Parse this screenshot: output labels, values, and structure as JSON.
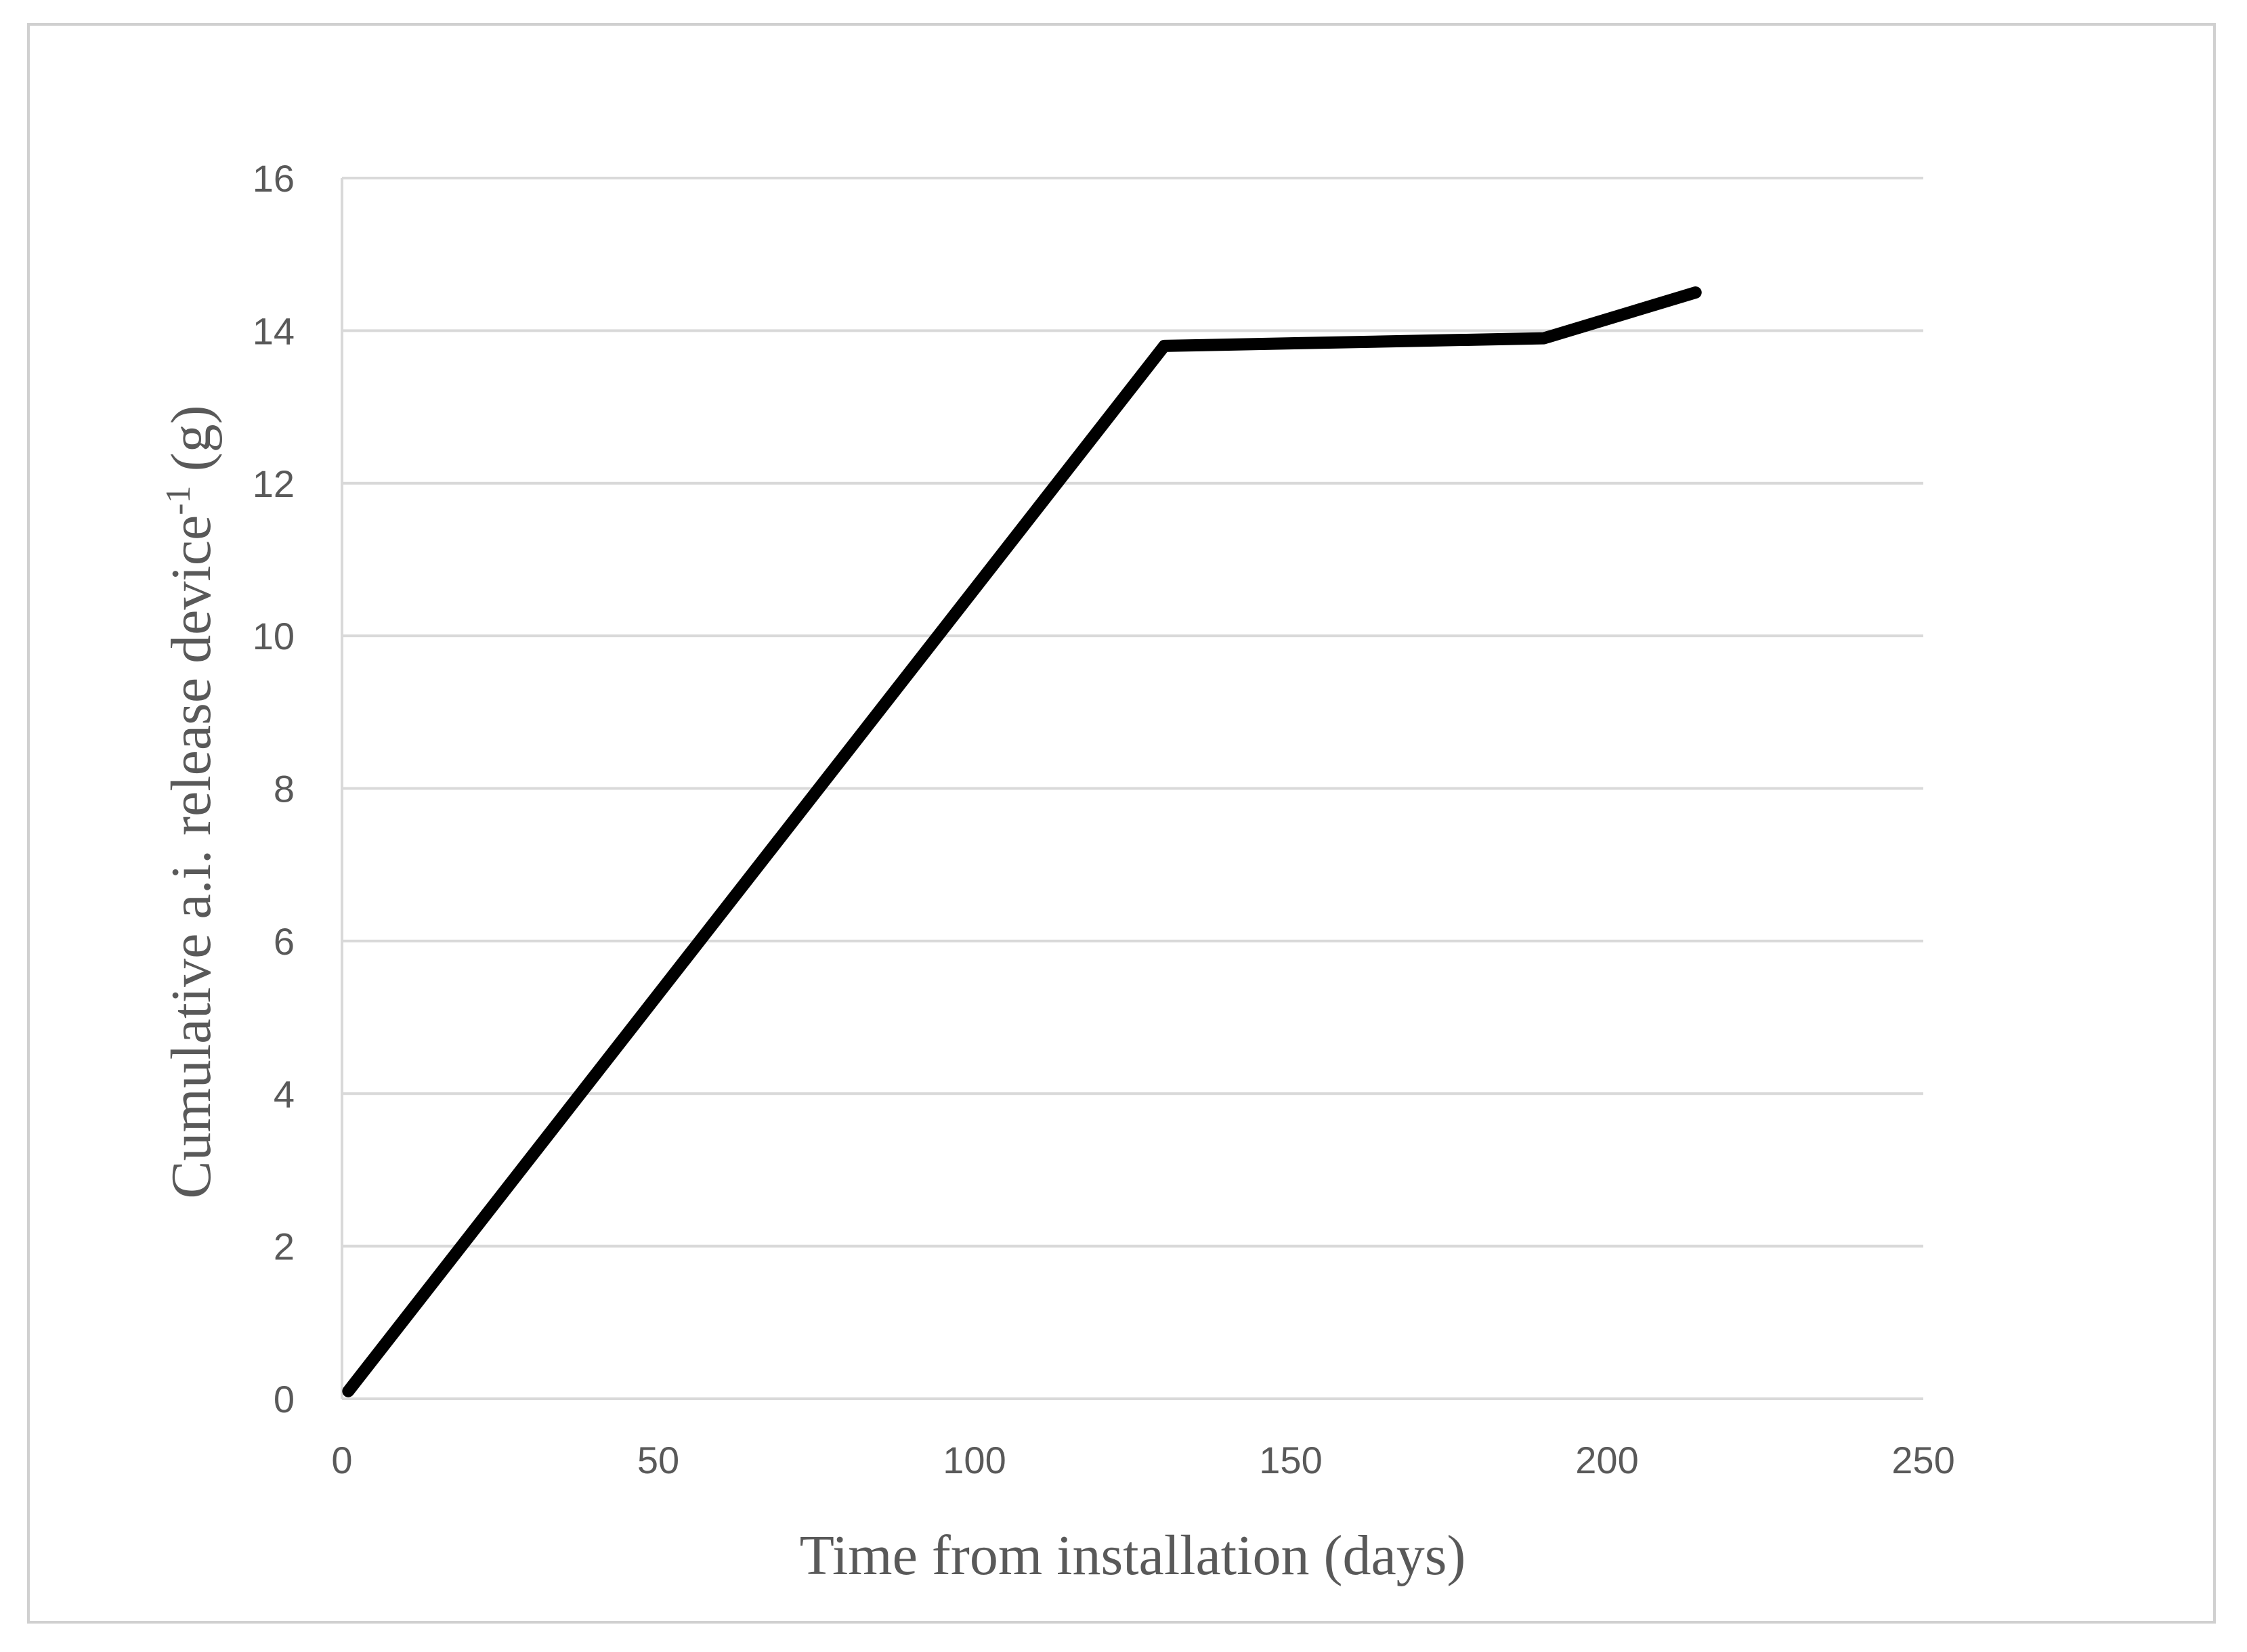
{
  "chart_data": {
    "type": "line",
    "title": "",
    "xlabel": "Time from installation (days)",
    "ylabel": {
      "main": "Cumulative a.i. release device",
      "superscript": "-1",
      "unit": " (g)"
    },
    "xlim": [
      0,
      250
    ],
    "ylim": [
      0,
      16
    ],
    "x_ticks": [
      0,
      50,
      100,
      150,
      200,
      250
    ],
    "y_ticks": [
      0,
      2,
      4,
      6,
      8,
      10,
      12,
      14,
      16
    ],
    "grid": "horizontal",
    "legend": "none",
    "series": [
      {
        "color": "#000000",
        "x": [
          1,
          130,
          190,
          214
        ],
        "y": [
          0.1,
          13.8,
          13.9,
          14.5
        ]
      }
    ]
  }
}
